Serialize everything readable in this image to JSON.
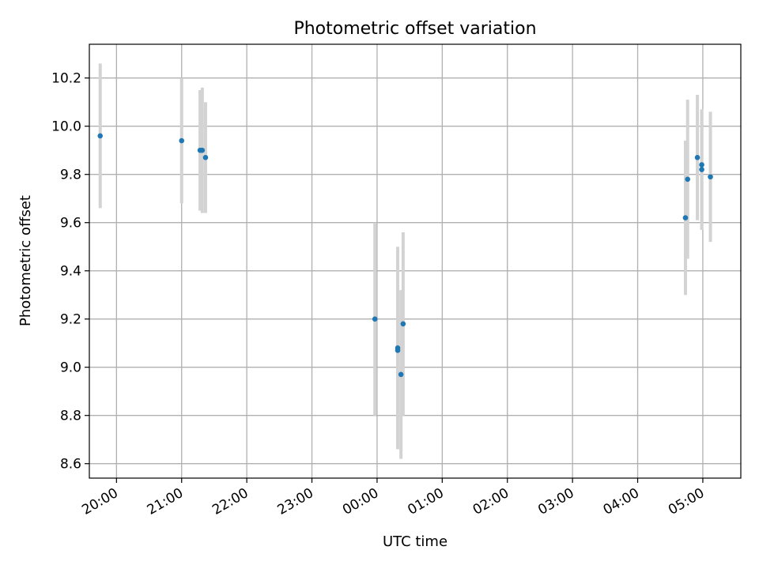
{
  "chart_data": {
    "type": "scatter",
    "title": "Photometric offset variation",
    "xlabel": "UTC time",
    "ylabel": "Photometric offset",
    "x_axis": {
      "scale": "time",
      "range": [
        "19:35",
        "05:35"
      ],
      "ticks": [
        "20:00",
        "21:00",
        "22:00",
        "23:00",
        "00:00",
        "01:00",
        "02:00",
        "03:00",
        "04:00",
        "05:00"
      ]
    },
    "y_axis": {
      "range": [
        8.54,
        10.34
      ],
      "ticks": [
        "8.6",
        "8.8",
        "9.0",
        "9.2",
        "9.4",
        "9.6",
        "9.8",
        "10.0",
        "10.2"
      ]
    },
    "grid": true,
    "marker_color": "#1f77b4",
    "errorbar_color": "#d3d3d3",
    "points": [
      {
        "time": "19:45",
        "y": 9.96,
        "err": 0.3
      },
      {
        "time": "21:00",
        "y": 9.94,
        "err": 0.26
      },
      {
        "time": "21:17",
        "y": 9.9,
        "err": 0.25
      },
      {
        "time": "21:19",
        "y": 9.9,
        "err": 0.26
      },
      {
        "time": "21:22",
        "y": 9.87,
        "err": 0.23
      },
      {
        "time": "23:58",
        "y": 9.2,
        "err": 0.4
      },
      {
        "time": "00:19",
        "y": 9.08,
        "err": 0.42
      },
      {
        "time": "00:19",
        "y": 9.07,
        "err": 0.41
      },
      {
        "time": "00:22",
        "y": 8.97,
        "err": 0.35
      },
      {
        "time": "00:24",
        "y": 9.18,
        "err": 0.38
      },
      {
        "time": "04:44",
        "y": 9.62,
        "err": 0.32
      },
      {
        "time": "04:46",
        "y": 9.78,
        "err": 0.33
      },
      {
        "time": "04:55",
        "y": 9.87,
        "err": 0.26
      },
      {
        "time": "04:59",
        "y": 9.84,
        "err": 0.22
      },
      {
        "time": "04:59",
        "y": 9.82,
        "err": 0.25
      },
      {
        "time": "05:07",
        "y": 9.79,
        "err": 0.27
      }
    ]
  }
}
